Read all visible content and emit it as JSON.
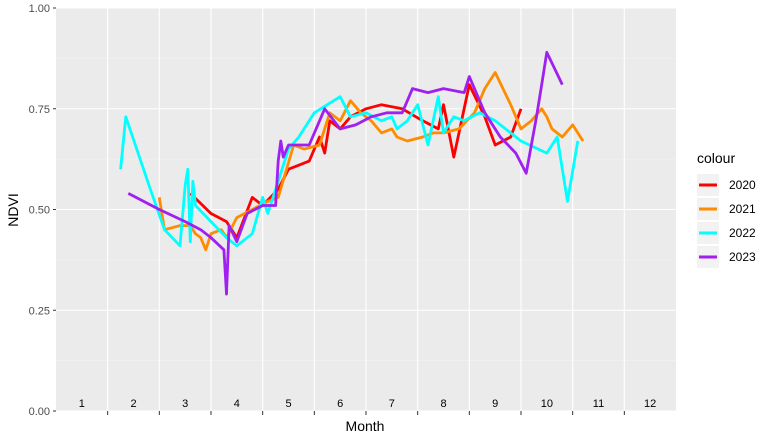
{
  "chart_data": {
    "type": "line",
    "title": "",
    "xlabel": "Month",
    "ylabel": "NDVI",
    "xlim": [
      0.5,
      12.5
    ],
    "ylim": [
      0,
      1
    ],
    "y_ticks": [
      0.0,
      0.25,
      0.5,
      0.75,
      1.0
    ],
    "y_tick_labels": [
      "0.00",
      "0.25",
      "0.50",
      "0.75",
      "1.00"
    ],
    "month_labels": [
      "1",
      "2",
      "3",
      "4",
      "5",
      "6",
      "7",
      "8",
      "9",
      "10",
      "11",
      "12"
    ],
    "grid": true,
    "legend": {
      "title": "colour",
      "position": "right"
    },
    "series": [
      {
        "name": "2020",
        "color": "#ff0000",
        "points": [
          [
            3.1,
            0.54
          ],
          [
            3.5,
            0.49
          ],
          [
            3.8,
            0.47
          ],
          [
            4.0,
            0.43
          ],
          [
            4.3,
            0.53
          ],
          [
            4.5,
            0.51
          ],
          [
            4.8,
            0.55
          ],
          [
            5.0,
            0.6
          ],
          [
            5.2,
            0.61
          ],
          [
            5.4,
            0.62
          ],
          [
            5.6,
            0.68
          ],
          [
            5.7,
            0.64
          ],
          [
            5.8,
            0.72
          ],
          [
            6.0,
            0.7
          ],
          [
            6.2,
            0.73
          ],
          [
            6.5,
            0.75
          ],
          [
            6.8,
            0.76
          ],
          [
            7.2,
            0.75
          ],
          [
            7.6,
            0.72
          ],
          [
            7.9,
            0.7
          ],
          [
            8.0,
            0.76
          ],
          [
            8.2,
            0.63
          ],
          [
            8.5,
            0.81
          ],
          [
            8.8,
            0.73
          ],
          [
            9.0,
            0.66
          ],
          [
            9.3,
            0.68
          ],
          [
            9.5,
            0.75
          ]
        ]
      },
      {
        "name": "2021",
        "color": "#ff8c00",
        "points": [
          [
            2.5,
            0.53
          ],
          [
            2.6,
            0.45
          ],
          [
            2.9,
            0.46
          ],
          [
            3.1,
            0.46
          ],
          [
            3.2,
            0.44
          ],
          [
            3.3,
            0.43
          ],
          [
            3.4,
            0.4
          ],
          [
            3.5,
            0.44
          ],
          [
            3.7,
            0.45
          ],
          [
            3.8,
            0.43
          ],
          [
            4.0,
            0.48
          ],
          [
            4.3,
            0.5
          ],
          [
            4.6,
            0.52
          ],
          [
            4.8,
            0.53
          ],
          [
            5.1,
            0.66
          ],
          [
            5.3,
            0.65
          ],
          [
            5.6,
            0.66
          ],
          [
            5.8,
            0.74
          ],
          [
            6.0,
            0.72
          ],
          [
            6.2,
            0.77
          ],
          [
            6.4,
            0.74
          ],
          [
            6.6,
            0.72
          ],
          [
            6.8,
            0.69
          ],
          [
            7.0,
            0.7
          ],
          [
            7.1,
            0.68
          ],
          [
            7.3,
            0.67
          ],
          [
            7.6,
            0.68
          ],
          [
            7.8,
            0.69
          ],
          [
            8.0,
            0.69
          ],
          [
            8.3,
            0.7
          ],
          [
            8.6,
            0.74
          ],
          [
            8.8,
            0.8
          ],
          [
            9.0,
            0.84
          ],
          [
            9.3,
            0.76
          ],
          [
            9.5,
            0.7
          ],
          [
            9.7,
            0.72
          ],
          [
            9.9,
            0.75
          ],
          [
            10.0,
            0.73
          ],
          [
            10.1,
            0.7
          ],
          [
            10.3,
            0.68
          ],
          [
            10.5,
            0.71
          ],
          [
            10.7,
            0.67
          ]
        ]
      },
      {
        "name": "2022",
        "color": "#00ffff",
        "points": [
          [
            1.75,
            0.6
          ],
          [
            1.85,
            0.73
          ],
          [
            2.3,
            0.56
          ],
          [
            2.6,
            0.45
          ],
          [
            2.9,
            0.41
          ],
          [
            3.0,
            0.56
          ],
          [
            3.05,
            0.6
          ],
          [
            3.1,
            0.42
          ],
          [
            3.15,
            0.57
          ],
          [
            3.2,
            0.51
          ],
          [
            3.5,
            0.47
          ],
          [
            3.8,
            0.43
          ],
          [
            4.0,
            0.41
          ],
          [
            4.3,
            0.44
          ],
          [
            4.5,
            0.53
          ],
          [
            4.6,
            0.49
          ],
          [
            4.8,
            0.57
          ],
          [
            5.0,
            0.65
          ],
          [
            5.2,
            0.68
          ],
          [
            5.5,
            0.74
          ],
          [
            5.75,
            0.76
          ],
          [
            6.0,
            0.78
          ],
          [
            6.2,
            0.73
          ],
          [
            6.5,
            0.74
          ],
          [
            6.8,
            0.72
          ],
          [
            7.0,
            0.73
          ],
          [
            7.1,
            0.7
          ],
          [
            7.3,
            0.72
          ],
          [
            7.5,
            0.76
          ],
          [
            7.7,
            0.66
          ],
          [
            7.9,
            0.78
          ],
          [
            8.0,
            0.69
          ],
          [
            8.2,
            0.73
          ],
          [
            8.4,
            0.72
          ],
          [
            8.7,
            0.74
          ],
          [
            9.0,
            0.72
          ],
          [
            9.5,
            0.67
          ],
          [
            10.0,
            0.64
          ],
          [
            10.2,
            0.68
          ],
          [
            10.4,
            0.52
          ],
          [
            10.6,
            0.67
          ]
        ]
      },
      {
        "name": "2023",
        "color": "#a020f0",
        "points": [
          [
            1.9,
            0.54
          ],
          [
            2.5,
            0.5
          ],
          [
            3.0,
            0.47
          ],
          [
            3.3,
            0.45
          ],
          [
            3.5,
            0.43
          ],
          [
            3.75,
            0.4
          ],
          [
            3.8,
            0.29
          ],
          [
            3.85,
            0.46
          ],
          [
            4.0,
            0.42
          ],
          [
            4.2,
            0.49
          ],
          [
            4.5,
            0.51
          ],
          [
            4.75,
            0.51
          ],
          [
            4.8,
            0.62
          ],
          [
            4.85,
            0.67
          ],
          [
            4.9,
            0.63
          ],
          [
            5.0,
            0.66
          ],
          [
            5.4,
            0.66
          ],
          [
            5.7,
            0.75
          ],
          [
            6.0,
            0.7
          ],
          [
            6.3,
            0.71
          ],
          [
            6.6,
            0.73
          ],
          [
            6.9,
            0.74
          ],
          [
            7.2,
            0.74
          ],
          [
            7.4,
            0.8
          ],
          [
            7.7,
            0.79
          ],
          [
            8.0,
            0.8
          ],
          [
            8.4,
            0.79
          ],
          [
            8.5,
            0.83
          ],
          [
            8.8,
            0.74
          ],
          [
            9.1,
            0.68
          ],
          [
            9.4,
            0.64
          ],
          [
            9.6,
            0.59
          ],
          [
            9.8,
            0.73
          ],
          [
            9.9,
            0.81
          ],
          [
            10.0,
            0.89
          ],
          [
            10.3,
            0.81
          ]
        ]
      }
    ]
  }
}
